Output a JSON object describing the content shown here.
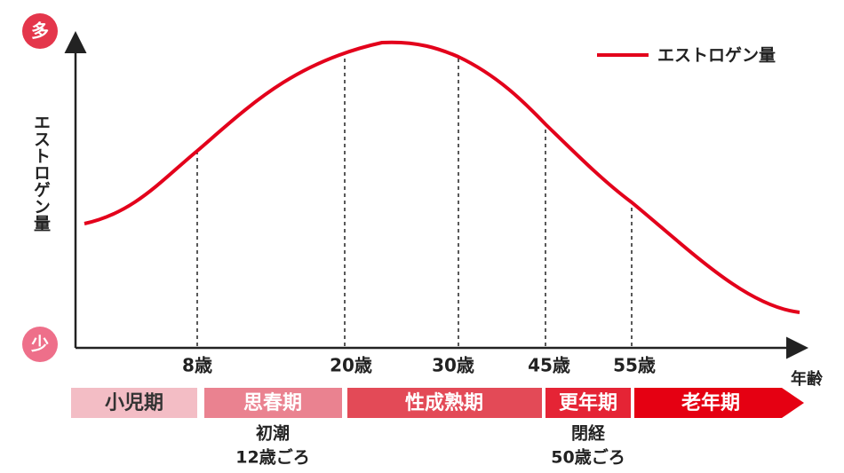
{
  "axis": {
    "y_label": "エストロゲン量",
    "high": "多",
    "low": "少",
    "x_label": "年齢"
  },
  "legend": "エストロゲン量",
  "ages": [
    "8歳",
    "20歳",
    "30歳",
    "45歳",
    "55歳"
  ],
  "phases": [
    "小児期",
    "思春期",
    "性成熟期",
    "更年期",
    "老年期"
  ],
  "notes": [
    [
      "初潮",
      "12歳ごろ"
    ],
    [
      "閉経",
      "50歳ごろ"
    ]
  ]
}
